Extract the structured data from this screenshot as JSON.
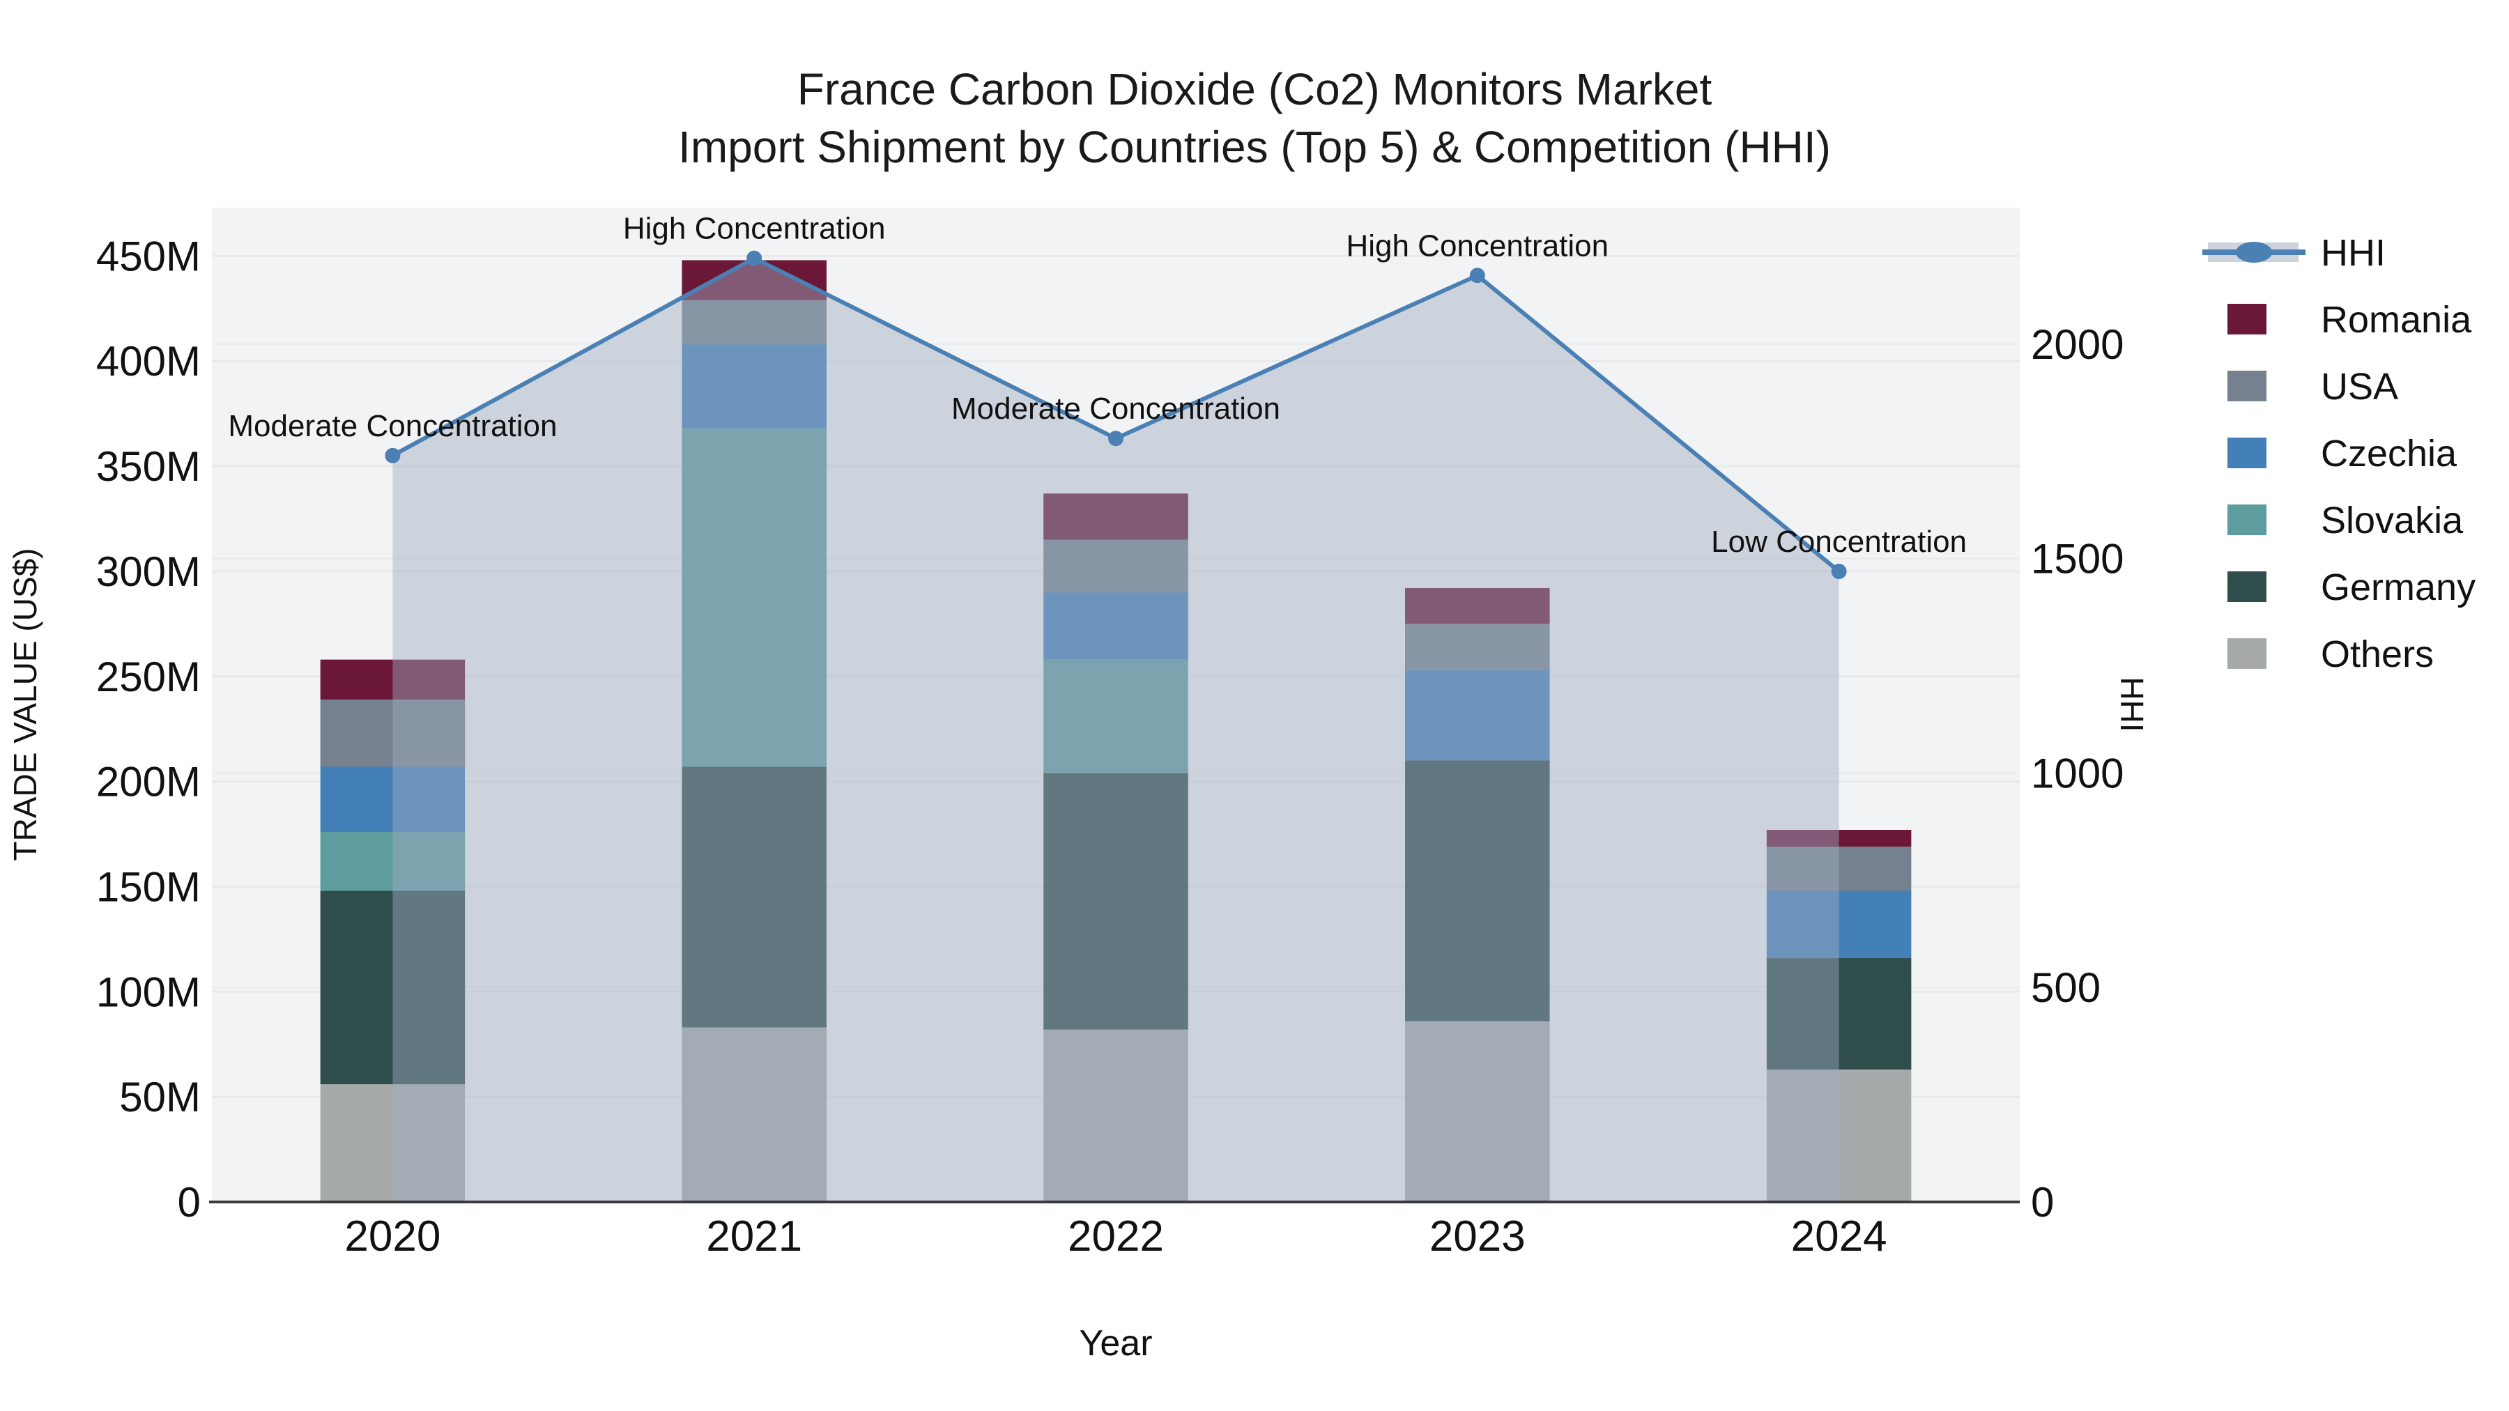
{
  "title": {
    "line1": "France Carbon Dioxide (Co2) Monitors Market",
    "line2": "Import Shipment by Countries (Top 5) & Competition (HHI)"
  },
  "axes": {
    "x_label": "Year",
    "y_left_label": "TRADE VALUE (US$)",
    "y_right_label": "HHI",
    "y_left_ticks": [
      "0",
      "50M",
      "100M",
      "150M",
      "200M",
      "250M",
      "300M",
      "350M",
      "400M",
      "450M"
    ],
    "y_left_tick_values_musd": [
      0,
      50,
      100,
      150,
      200,
      250,
      300,
      350,
      400,
      450
    ],
    "y_right_ticks": [
      "0",
      "500",
      "1000",
      "1500",
      "2000"
    ],
    "y_right_tick_values": [
      0,
      500,
      1000,
      1500,
      2000
    ],
    "x_ticks": [
      "2020",
      "2021",
      "2022",
      "2023",
      "2024"
    ]
  },
  "legend": {
    "items": [
      {
        "label": "HHI",
        "type": "line"
      },
      {
        "label": "Romania",
        "type": "swatch"
      },
      {
        "label": "USA",
        "type": "swatch"
      },
      {
        "label": "Czechia",
        "type": "swatch"
      },
      {
        "label": "Slovakia",
        "type": "swatch"
      },
      {
        "label": "Germany",
        "type": "swatch"
      },
      {
        "label": "Others",
        "type": "swatch"
      }
    ]
  },
  "colors": {
    "series": {
      "Romania": "#6a1738",
      "USA": "#75818f",
      "Czechia": "#4480b8",
      "Slovakia": "#5e9d9e",
      "Germany": "#2f4d4b",
      "Others": "#a7aaab"
    },
    "hhi_line": "#4a80b4",
    "hhi_area_fill": "rgba(159,173,192,0.45)",
    "hhi_area_solid": "#ccd3dc",
    "plot_bg": "#f2f3f4",
    "gridline": "#e7e9eb",
    "axis_line": "#3a3a3a",
    "text": "#111111"
  },
  "chart_data": {
    "type": "bar",
    "subtype": "stacked-bar-with-line-area-overlay",
    "title": "France Carbon Dioxide (Co2) Monitors Market — Import Shipment by Countries (Top 5) & Competition (HHI)",
    "xlabel": "Year",
    "ylabel_left": "TRADE VALUE (US$)",
    "ylabel_right": "HHI",
    "units_bars": "US$ millions",
    "categories": [
      "2020",
      "2021",
      "2022",
      "2023",
      "2024"
    ],
    "stack_order_bottom_to_top": [
      "Others",
      "Germany",
      "Slovakia",
      "Czechia",
      "USA",
      "Romania"
    ],
    "series": [
      {
        "name": "Others",
        "values": [
          56,
          83,
          82,
          86,
          63
        ]
      },
      {
        "name": "Germany",
        "values": [
          92,
          124,
          122,
          124,
          53
        ]
      },
      {
        "name": "Slovakia",
        "values": [
          28,
          161,
          54,
          0,
          0
        ]
      },
      {
        "name": "Czechia",
        "values": [
          31,
          40,
          32,
          43,
          32
        ]
      },
      {
        "name": "USA",
        "values": [
          32,
          21,
          25,
          22,
          21
        ]
      },
      {
        "name": "Romania",
        "values": [
          19,
          19,
          22,
          17,
          8
        ]
      }
    ],
    "bar_totals_musd": [
      258,
      448,
      337,
      292,
      177
    ],
    "line_series": {
      "name": "HHI",
      "axis": "right",
      "values": [
        1740,
        2200,
        1780,
        2160,
        1470
      ]
    },
    "annotations": [
      {
        "category": "2020",
        "text": "Moderate Concentration"
      },
      {
        "category": "2021",
        "text": "High Concentration"
      },
      {
        "category": "2022",
        "text": "Moderate Concentration"
      },
      {
        "category": "2023",
        "text": "High Concentration"
      },
      {
        "category": "2024",
        "text": "Low Concentration"
      }
    ],
    "ylim_left_musd": [
      0,
      473
    ],
    "ylim_right": [
      0,
      2318
    ],
    "grid": true,
    "legend_position": "right"
  }
}
